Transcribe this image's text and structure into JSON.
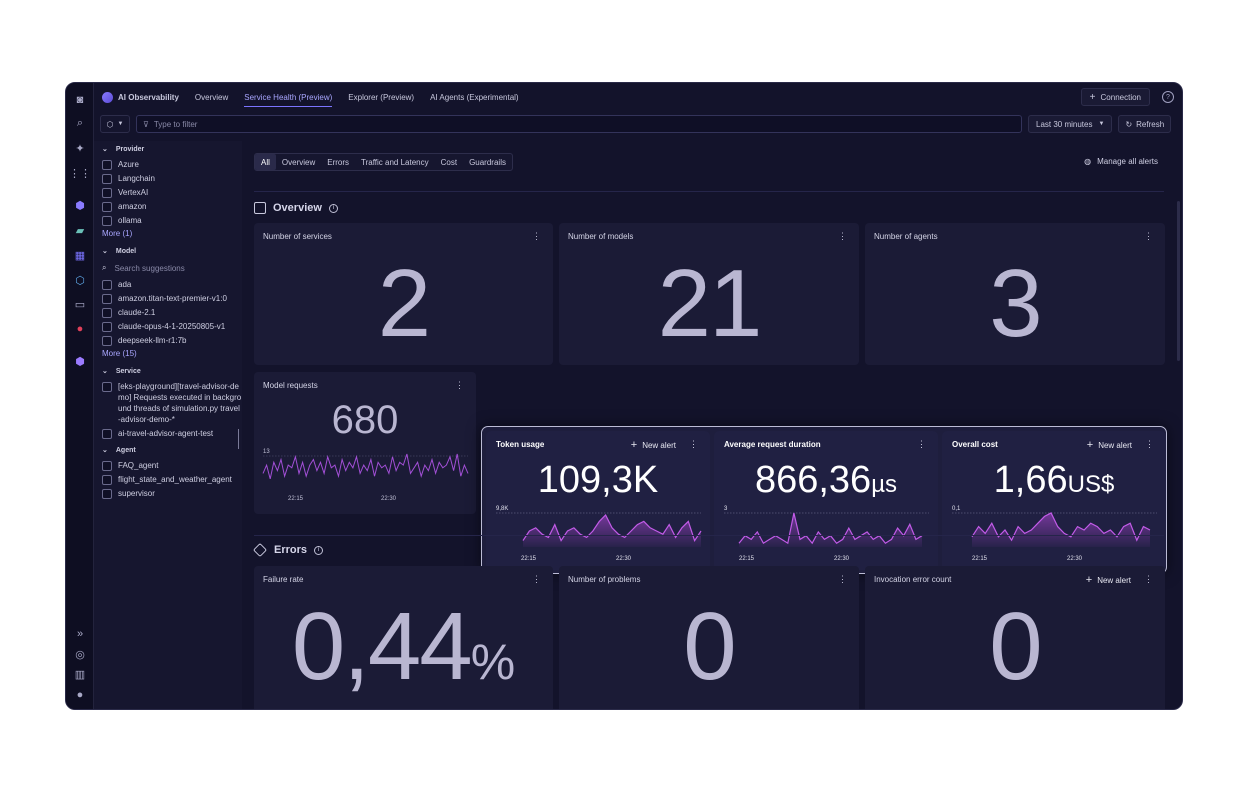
{
  "nav": {
    "app_title": "AI Observability",
    "tabs": [
      {
        "label": "Overview"
      },
      {
        "label": "Service Health (Preview)"
      },
      {
        "label": "Explorer (Preview)"
      },
      {
        "label": "AI Agents (Experimental)"
      }
    ],
    "connection_label": "Connection",
    "help_icon": "help-icon"
  },
  "filter": {
    "placeholder": "Type to filter",
    "timeframe": "Last 30 minutes",
    "refresh_label": "Refresh"
  },
  "sidebar": {
    "provider": {
      "title": "Provider",
      "items": [
        "Azure",
        "Langchain",
        "VertexAI",
        "amazon",
        "ollama"
      ],
      "more": "More (1)"
    },
    "model": {
      "title": "Model",
      "search_placeholder": "Search suggestions",
      "items": [
        "ada",
        "amazon.titan-text-premier-v1:0",
        "claude-2.1",
        "claude-opus-4-1-20250805-v1",
        "deepseek-llm-r1:7b"
      ],
      "more": "More (15)"
    },
    "service": {
      "title": "Service",
      "items": [
        "[eks-playground][travel-advisor-demo] Requests executed in background threads of simulation.py travel-advisor-demo-*",
        "ai-travel-advisor-agent-test"
      ]
    },
    "agent": {
      "title": "Agent",
      "items": [
        "FAQ_agent",
        "flight_state_and_weather_agent",
        "supervisor"
      ]
    }
  },
  "filter_tabs": [
    "All",
    "Overview",
    "Errors",
    "Traffic and Latency",
    "Cost",
    "Guardrails"
  ],
  "manage_alerts": "Manage all alerts",
  "overview": {
    "title": "Overview",
    "services": {
      "title": "Number of services",
      "value": "2"
    },
    "models": {
      "title": "Number of models",
      "value": "21"
    },
    "agents": {
      "title": "Number of agents",
      "value": "3"
    },
    "model_requests": {
      "title": "Model requests",
      "value": "680",
      "y_tick": "13",
      "x_ticks": [
        "22:15",
        "22:30"
      ]
    },
    "token_usage": {
      "title": "Token usage",
      "value": "109,3K",
      "unit": "",
      "y_tick": "9,8K",
      "x_ticks": [
        "22:15",
        "22:30"
      ],
      "alert": "New alert"
    },
    "duration": {
      "title": "Average request duration",
      "value": "866,36",
      "unit": "µs",
      "y_tick": "3",
      "x_ticks": [
        "22:15",
        "22:30"
      ]
    },
    "cost": {
      "title": "Overall cost",
      "value": "1,66",
      "unit": "US$",
      "y_tick": "0,1",
      "x_ticks": [
        "22:15",
        "22:30"
      ],
      "alert": "New alert"
    }
  },
  "errors": {
    "title": "Errors",
    "failure_rate": {
      "title": "Failure rate",
      "value": "0,44",
      "unit": "%"
    },
    "problems": {
      "title": "Number of problems",
      "value": "0"
    },
    "invocation": {
      "title": "Invocation error count",
      "value": "0",
      "alert": "New alert"
    }
  },
  "chart_data": [
    {
      "type": "line",
      "name": "model_requests",
      "values": [
        6,
        9,
        4,
        10,
        7,
        11,
        5,
        9,
        8,
        12,
        6,
        10,
        5,
        9,
        11,
        7,
        10,
        6,
        12,
        8,
        9,
        5,
        11,
        7,
        10,
        8,
        12,
        6,
        9,
        7,
        11,
        5,
        10,
        8,
        9,
        6,
        12,
        7,
        10,
        9,
        13,
        6,
        8,
        10,
        5,
        9,
        7,
        11,
        6,
        10,
        8,
        9,
        12,
        7,
        13,
        5,
        9,
        6
      ]
    },
    {
      "type": "area",
      "name": "token_usage",
      "values": [
        2,
        5,
        6,
        4,
        3,
        7,
        2,
        5,
        6,
        4,
        3,
        5,
        8,
        10,
        6,
        4,
        3,
        5,
        7,
        8,
        6,
        5,
        4,
        7,
        3,
        6,
        8,
        2,
        5
      ]
    },
    {
      "type": "area",
      "name": "duration",
      "values": [
        1,
        3,
        2,
        4,
        1,
        2,
        3,
        2,
        1,
        9,
        2,
        3,
        1,
        4,
        2,
        3,
        1,
        2,
        5,
        2,
        3,
        4,
        2,
        3,
        1,
        2,
        5,
        3,
        6,
        2,
        3
      ]
    },
    {
      "type": "area",
      "name": "cost",
      "values": [
        3,
        6,
        4,
        7,
        3,
        5,
        2,
        6,
        4,
        5,
        7,
        9,
        10,
        6,
        4,
        3,
        6,
        5,
        7,
        6,
        4,
        5,
        3,
        6,
        7,
        2,
        6,
        5
      ]
    }
  ]
}
